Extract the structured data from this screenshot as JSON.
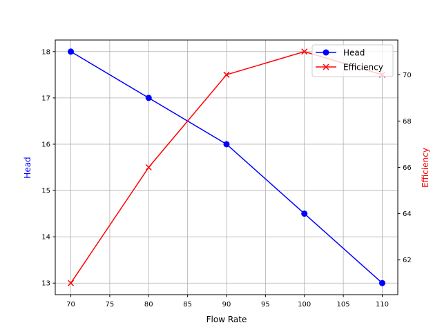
{
  "chart_data": {
    "type": "line",
    "title": "",
    "xlabel": "Flow Rate",
    "ylabel": "Head",
    "y2label": "Efficiency",
    "x": [
      70,
      80,
      90,
      100,
      110
    ],
    "xlim": [
      68,
      112
    ],
    "ylim": [
      12.75,
      18.25
    ],
    "y2lim": [
      60.5,
      71.5
    ],
    "xticks": [
      70,
      75,
      80,
      85,
      90,
      95,
      100,
      105,
      110
    ],
    "yticks": [
      13,
      14,
      15,
      16,
      17,
      18
    ],
    "y2ticks": [
      62,
      64,
      66,
      68,
      70
    ],
    "grid": true,
    "legend_position": "upper right",
    "series": [
      {
        "name": "Head",
        "axis": "left",
        "color": "#0000ff",
        "marker": "o",
        "values": [
          18,
          17,
          16,
          14.5,
          13
        ]
      },
      {
        "name": "Efficiency",
        "axis": "right",
        "color": "#ff0000",
        "marker": "x",
        "values": [
          61,
          66,
          70,
          71,
          70
        ]
      }
    ]
  }
}
